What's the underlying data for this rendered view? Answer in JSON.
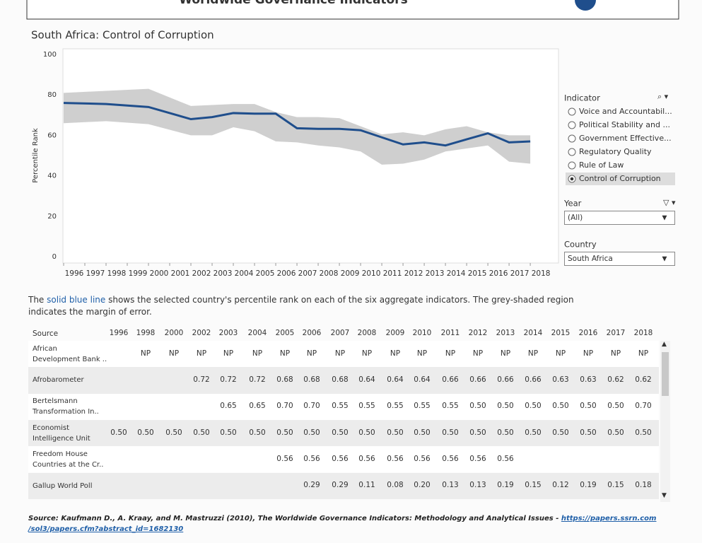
{
  "header": {
    "title": "Worldwide Governance Indicators"
  },
  "chart_data": {
    "type": "line",
    "title": "South Africa: Control of Corruption",
    "y_label": "Percentile Rank",
    "x": [
      1996,
      1998,
      2000,
      2002,
      2003,
      2004,
      2005,
      2006,
      2007,
      2008,
      2009,
      2010,
      2011,
      2012,
      2013,
      2014,
      2015,
      2016,
      2017,
      2018
    ],
    "values": [
      76,
      75.5,
      74,
      68,
      69,
      71,
      70.7,
      70.7,
      63.5,
      63.2,
      63.2,
      62.5,
      59,
      55.5,
      56.5,
      55,
      58,
      61,
      56.5,
      57
    ],
    "upper": [
      81,
      82,
      83,
      74.5,
      75,
      75.5,
      75.5,
      71.5,
      69,
      69,
      68.5,
      64.5,
      60.5,
      61.5,
      60,
      63,
      64.5,
      61.5,
      60,
      60
    ],
    "lower": [
      66,
      67,
      65.5,
      60,
      60,
      64,
      62,
      57,
      56.5,
      55,
      54,
      52,
      45.5,
      46,
      48,
      52,
      53.5,
      55,
      47,
      46
    ],
    "color": "#1f4e8c",
    "band_color": "#cfcfcf",
    "xlim": [
      1996,
      2019.33
    ],
    "xticks": [
      1996,
      1997,
      1998,
      1999,
      2000,
      2001,
      2002,
      2003,
      2004,
      2005,
      2006,
      2007,
      2008,
      2009,
      2010,
      2011,
      2012,
      2013,
      2014,
      2015,
      2016,
      2017,
      2018
    ],
    "ylim": [
      0,
      100
    ],
    "yticks": [
      0,
      20,
      40,
      60,
      80,
      100
    ],
    "grid": false
  },
  "filters": {
    "indicator": {
      "label": "Indicator",
      "options": [
        "Voice and Accountabil...",
        "Political Stability and ...",
        "Government Effective...",
        "Regulatory Quality",
        "Rule of Law",
        "Control of Corruption"
      ],
      "selected": 5
    },
    "year": {
      "label": "Year",
      "value": "(All)"
    },
    "country": {
      "label": "Country",
      "value": "South Africa"
    }
  },
  "description": [
    "The",
    "solid blue line",
    "shows the selected country's percentile rank on each of the six aggregate indicators.  The grey-shaded region",
    "indicates the margin of error."
  ],
  "table": {
    "header": [
      "Source",
      "1996",
      "1998",
      "2000",
      "2002",
      "2003",
      "2004",
      "2005",
      "2006",
      "2007",
      "2008",
      "2009",
      "2010",
      "2011",
      "2012",
      "2013",
      "2014",
      "2015",
      "2016",
      "2017",
      "2018"
    ],
    "rows": [
      {
        "source": [
          "African",
          "Development Bank .."
        ],
        "values": [
          null,
          "NP",
          "NP",
          "NP",
          "NP",
          "NP",
          "NP",
          "NP",
          "NP",
          "NP",
          "NP",
          "NP",
          "NP",
          "NP",
          "NP",
          "NP",
          "NP",
          "NP",
          "NP",
          "NP"
        ]
      },
      {
        "source": [
          "Afrobarometer"
        ],
        "values": [
          null,
          null,
          null,
          "0.72",
          "0.72",
          "0.72",
          "0.68",
          "0.68",
          "0.68",
          "0.64",
          "0.64",
          "0.64",
          "0.66",
          "0.66",
          "0.66",
          "0.66",
          "0.63",
          "0.63",
          "0.62",
          "0.62"
        ]
      },
      {
        "source": [
          "Bertelsmann",
          "Transformation In.."
        ],
        "values": [
          null,
          null,
          null,
          null,
          "0.65",
          "0.65",
          "0.70",
          "0.70",
          "0.55",
          "0.55",
          "0.55",
          "0.55",
          "0.55",
          "0.50",
          "0.50",
          "0.50",
          "0.50",
          "0.50",
          "0.50",
          "0.70"
        ]
      },
      {
        "source": [
          "Economist",
          "Intelligence Unit"
        ],
        "values": [
          "0.50",
          "0.50",
          "0.50",
          "0.50",
          "0.50",
          "0.50",
          "0.50",
          "0.50",
          "0.50",
          "0.50",
          "0.50",
          "0.50",
          "0.50",
          "0.50",
          "0.50",
          "0.50",
          "0.50",
          "0.50",
          "0.50",
          "0.50"
        ]
      },
      {
        "source": [
          "Freedom House",
          "Countries at the Cr.."
        ],
        "values": [
          null,
          null,
          null,
          null,
          null,
          null,
          "0.56",
          "0.56",
          "0.56",
          "0.56",
          "0.56",
          "0.56",
          "0.56",
          "0.56",
          "0.56",
          null,
          null,
          null,
          null,
          null
        ]
      },
      {
        "source": [
          "Gallup World Poll"
        ],
        "values": [
          null,
          null,
          null,
          null,
          null,
          null,
          null,
          "0.29",
          "0.29",
          "0.11",
          "0.08",
          "0.20",
          "0.13",
          "0.13",
          "0.19",
          "0.15",
          "0.12",
          "0.19",
          "0.15",
          "0.18"
        ]
      }
    ]
  },
  "source": {
    "text": "Source: Kaufmann D., A. Kraay, and M. Mastruzzi (2010), The Worldwide Governance Indicators: Methodology and Analytical Issues -",
    "link": [
      "https://papers.ssrn.com",
      "/sol3/papers.cfm?abstract_id=1682130"
    ]
  }
}
